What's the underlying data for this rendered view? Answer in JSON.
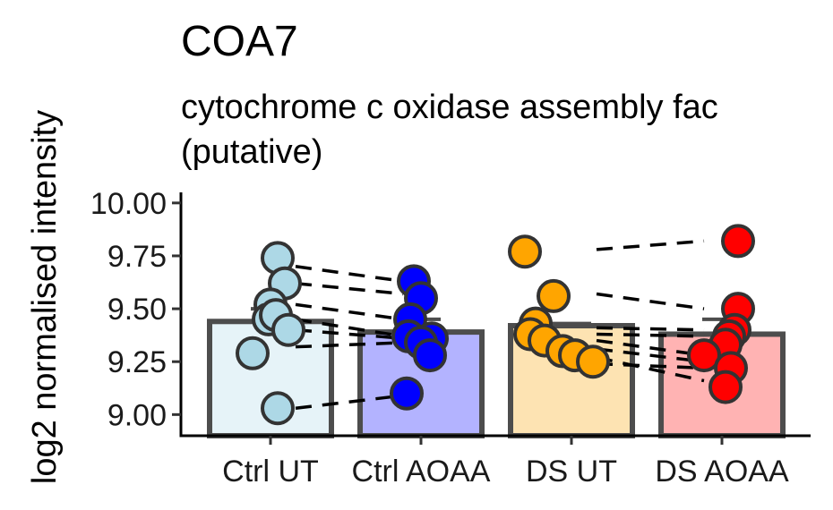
{
  "chart_data": {
    "type": "bar",
    "title": "COA7",
    "subtitle_lines": [
      "cytochrome c oxidase assembly fac",
      "(putative)"
    ],
    "xlabel": "",
    "ylabel": "log2 normalised intensity",
    "ylim": [
      8.9,
      10.05
    ],
    "yticks": [
      9.0,
      9.25,
      9.5,
      9.75,
      10.0
    ],
    "ytick_labels": [
      "9.00",
      "9.25",
      "9.50",
      "9.75",
      "10.00"
    ],
    "categories": [
      "Ctrl UT",
      "Ctrl AOAA",
      "DS UT",
      "DS AOAA"
    ],
    "bar_values": [
      9.44,
      9.39,
      9.42,
      9.38
    ],
    "error_upper": [
      9.5,
      9.45,
      9.43,
      9.45
    ],
    "bar_fill": [
      "#e6f3f8",
      "#b3b3ff",
      "#fde3b2",
      "#ffb3b3"
    ],
    "point_fill": [
      "#add8e6",
      "#0000ff",
      "#ffa500",
      "#ff0000"
    ],
    "bar_edge": "#4d4d4d",
    "points": [
      [
        9.74,
        9.62,
        9.52,
        9.45,
        9.47,
        9.4,
        9.29,
        9.03
      ],
      [
        9.63,
        9.55,
        9.45,
        9.37,
        9.36,
        9.34,
        9.28,
        9.1
      ],
      [
        9.77,
        9.56,
        9.43,
        9.38,
        9.35,
        9.3,
        9.28,
        9.25
      ],
      [
        9.82,
        9.5,
        9.4,
        9.37,
        9.33,
        9.28,
        9.22,
        9.13
      ]
    ],
    "pairs": [
      {
        "from": [
          0,
          9.7
        ],
        "to": [
          1,
          9.63
        ]
      },
      {
        "from": [
          0,
          9.62
        ],
        "to": [
          1,
          9.57
        ]
      },
      {
        "from": [
          0,
          9.52
        ],
        "to": [
          1,
          9.45
        ]
      },
      {
        "from": [
          0,
          9.45
        ],
        "to": [
          1,
          9.37
        ]
      },
      {
        "from": [
          0,
          9.4
        ],
        "to": [
          1,
          9.36
        ]
      },
      {
        "from": [
          0,
          9.32
        ],
        "to": [
          1,
          9.34
        ]
      },
      {
        "from": [
          0,
          9.03
        ],
        "to": [
          1,
          9.09
        ]
      },
      {
        "from": [
          2,
          9.78
        ],
        "to": [
          3,
          9.82
        ]
      },
      {
        "from": [
          2,
          9.57
        ],
        "to": [
          3,
          9.5
        ]
      },
      {
        "from": [
          2,
          9.41
        ],
        "to": [
          3,
          9.4
        ]
      },
      {
        "from": [
          2,
          9.38
        ],
        "to": [
          3,
          9.37
        ]
      },
      {
        "from": [
          2,
          9.35
        ],
        "to": [
          3,
          9.28
        ]
      },
      {
        "from": [
          2,
          9.31
        ],
        "to": [
          3,
          9.25
        ]
      },
      {
        "from": [
          2,
          9.27
        ],
        "to": [
          3,
          9.16
        ]
      },
      {
        "from": [
          2,
          9.24
        ],
        "to": [
          3,
          9.22
        ]
      }
    ],
    "grid": false,
    "legend": "none"
  }
}
